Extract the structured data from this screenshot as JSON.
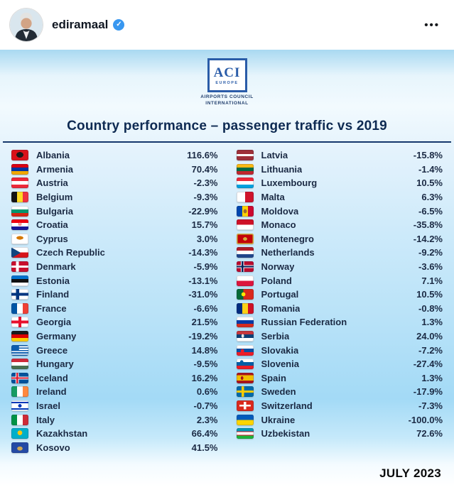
{
  "post": {
    "username": "ediramaal",
    "verified_glyph": "✓",
    "more_label": "•••"
  },
  "infographic": {
    "logo": {
      "acronym": "ACI",
      "region": "EUROPE",
      "line1": "AIRPORTS COUNCIL",
      "line2": "INTERNATIONAL"
    },
    "date": "JULY 2023"
  },
  "colors": {
    "title_navy": "#0e2a52",
    "table_text": "#1b2a44",
    "verified_blue": "#3897f0",
    "panel_blue": "#bfe3f7"
  },
  "chart_data": {
    "type": "table",
    "title": "Country performance – passenger traffic vs 2019",
    "left_column_count": 22,
    "rows": [
      {
        "country": "Albania",
        "value": "116.6%",
        "flag": "al"
      },
      {
        "country": "Armenia",
        "value": "70.4%",
        "flag": "am"
      },
      {
        "country": "Austria",
        "value": "-2.3%",
        "flag": "at"
      },
      {
        "country": "Belgium",
        "value": "-9.3%",
        "flag": "be"
      },
      {
        "country": "Bulgaria",
        "value": "-22.9%",
        "flag": "bg"
      },
      {
        "country": "Croatia",
        "value": "15.7%",
        "flag": "hr"
      },
      {
        "country": "Cyprus",
        "value": "3.0%",
        "flag": "cy"
      },
      {
        "country": "Czech Republic",
        "value": "-14.3%",
        "flag": "cz"
      },
      {
        "country": "Denmark",
        "value": "-5.9%",
        "flag": "dk"
      },
      {
        "country": "Estonia",
        "value": "-13.1%",
        "flag": "ee"
      },
      {
        "country": "Finland",
        "value": "-31.0%",
        "flag": "fi"
      },
      {
        "country": "France",
        "value": "-6.6%",
        "flag": "fr"
      },
      {
        "country": "Georgia",
        "value": "21.5%",
        "flag": "ge"
      },
      {
        "country": "Germany",
        "value": "-19.2%",
        "flag": "de"
      },
      {
        "country": "Greece",
        "value": "14.8%",
        "flag": "gr"
      },
      {
        "country": "Hungary",
        "value": "-9.5%",
        "flag": "hu"
      },
      {
        "country": "Iceland",
        "value": "16.2%",
        "flag": "is"
      },
      {
        "country": "Ireland",
        "value": "0.6%",
        "flag": "ie"
      },
      {
        "country": "Israel",
        "value": "-0.7%",
        "flag": "il"
      },
      {
        "country": "Italy",
        "value": "2.3%",
        "flag": "it"
      },
      {
        "country": "Kazakhstan",
        "value": "66.4%",
        "flag": "kz"
      },
      {
        "country": "Kosovo",
        "value": "41.5%",
        "flag": "xk"
      },
      {
        "country": "Latvia",
        "value": "-15.8%",
        "flag": "lv"
      },
      {
        "country": "Lithuania",
        "value": "-1.4%",
        "flag": "lt"
      },
      {
        "country": "Luxembourg",
        "value": "10.5%",
        "flag": "lu"
      },
      {
        "country": "Malta",
        "value": "6.3%",
        "flag": "mt"
      },
      {
        "country": "Moldova",
        "value": "-6.5%",
        "flag": "md"
      },
      {
        "country": "Monaco",
        "value": "-35.8%",
        "flag": "mc"
      },
      {
        "country": "Montenegro",
        "value": "-14.2%",
        "flag": "me"
      },
      {
        "country": "Netherlands",
        "value": "-9.2%",
        "flag": "nl"
      },
      {
        "country": "Norway",
        "value": "-3.6%",
        "flag": "no"
      },
      {
        "country": "Poland",
        "value": "7.1%",
        "flag": "pl"
      },
      {
        "country": "Portugal",
        "value": "10.5%",
        "flag": "pt"
      },
      {
        "country": "Romania",
        "value": "-0.8%",
        "flag": "ro"
      },
      {
        "country": "Russian Federation",
        "value": "1.3%",
        "flag": "ru"
      },
      {
        "country": "Serbia",
        "value": "24.0%",
        "flag": "rs"
      },
      {
        "country": "Slovakia",
        "value": "-7.2%",
        "flag": "sk"
      },
      {
        "country": "Slovenia",
        "value": "-27.4%",
        "flag": "si"
      },
      {
        "country": "Spain",
        "value": "1.3%",
        "flag": "es"
      },
      {
        "country": "Sweden",
        "value": "-17.9%",
        "flag": "se"
      },
      {
        "country": "Switzerland",
        "value": "-7.3%",
        "flag": "ch"
      },
      {
        "country": "Ukraine",
        "value": "-100.0%",
        "flag": "ua"
      },
      {
        "country": "Uzbekistan",
        "value": "72.6%",
        "flag": "uz"
      }
    ]
  }
}
